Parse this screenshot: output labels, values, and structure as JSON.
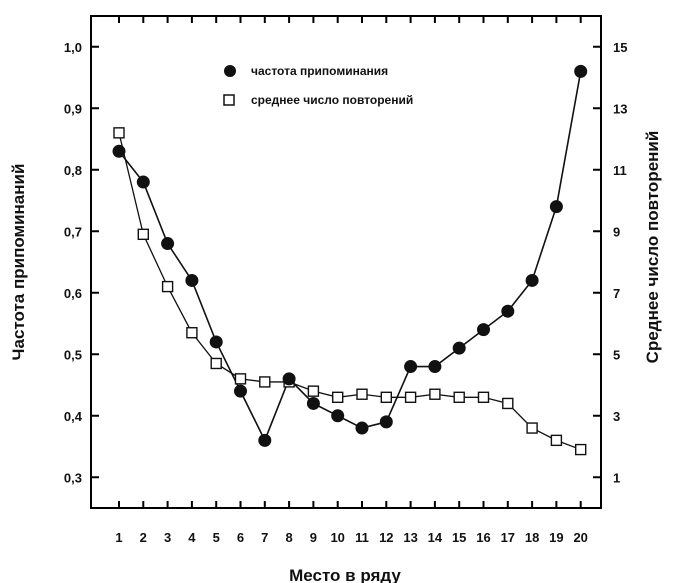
{
  "chart_data": {
    "type": "line",
    "xlabel": "Место в ряду",
    "ylabel_left": "Частота припоминаний",
    "ylabel_right": "Среднее число повторений",
    "x": [
      1,
      2,
      3,
      4,
      5,
      6,
      7,
      8,
      9,
      10,
      11,
      12,
      13,
      14,
      15,
      16,
      17,
      18,
      19,
      20
    ],
    "x_ticks": [
      1,
      2,
      3,
      4,
      5,
      6,
      7,
      8,
      9,
      10,
      11,
      12,
      13,
      14,
      15,
      16,
      17,
      18,
      19,
      20
    ],
    "ylim_left": [
      0.25,
      1.05
    ],
    "ylim_right": [
      0.0,
      16.0
    ],
    "yticks_left": [
      "0,3",
      "0,4",
      "0,5",
      "0,6",
      "0,7",
      "0,8",
      "0,9",
      "1,0"
    ],
    "yticks_left_values": [
      0.3,
      0.4,
      0.5,
      0.6,
      0.7,
      0.8,
      0.9,
      1.0
    ],
    "yticks_right": [
      "1",
      "3",
      "5",
      "7",
      "9",
      "11",
      "13",
      "15"
    ],
    "yticks_right_values": [
      1,
      3,
      5,
      7,
      9,
      11,
      13,
      15
    ],
    "grid": false,
    "legend_position": "top-center",
    "series": [
      {
        "name": "частота припоминания",
        "axis": "left",
        "marker": "filled-circle",
        "values": [
          0.83,
          0.78,
          0.68,
          0.62,
          0.52,
          0.44,
          0.36,
          0.46,
          0.42,
          0.4,
          0.38,
          0.39,
          0.48,
          0.48,
          0.51,
          0.54,
          0.57,
          0.62,
          0.74,
          0.96
        ]
      },
      {
        "name": "среднее число повторений",
        "axis": "right",
        "marker": "open-square",
        "values": [
          12.2,
          8.9,
          7.2,
          5.7,
          4.7,
          4.2,
          4.1,
          4.1,
          3.8,
          3.6,
          3.7,
          3.6,
          3.6,
          3.7,
          3.6,
          3.6,
          3.4,
          2.6,
          2.2,
          1.9
        ]
      }
    ]
  }
}
